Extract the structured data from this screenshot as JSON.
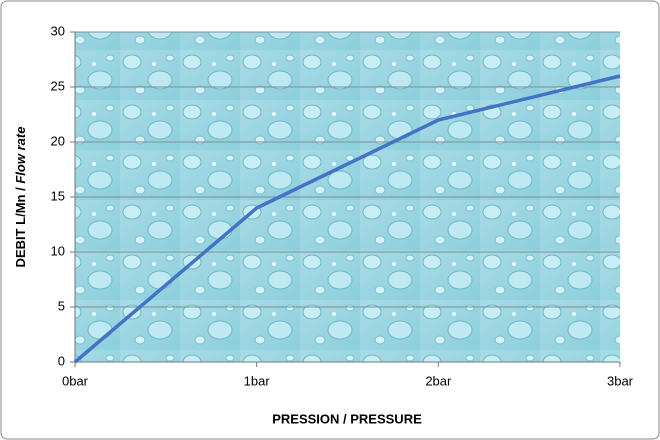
{
  "chart_data": {
    "type": "line",
    "xlabel": "PRESSION / PRESSURE",
    "ylabel": [
      "DEBIT L/Mn /",
      "Flow rate"
    ],
    "categories": [
      "0bar",
      "1bar",
      "2bar",
      "3bar"
    ],
    "series": [
      {
        "name": "Flow rate",
        "color": "#4472c4",
        "values": [
          0,
          14,
          22,
          26
        ]
      }
    ],
    "ylim": [
      0,
      30
    ],
    "yticks": [
      0,
      5,
      10,
      15,
      20,
      25,
      30
    ],
    "grid": true
  }
}
